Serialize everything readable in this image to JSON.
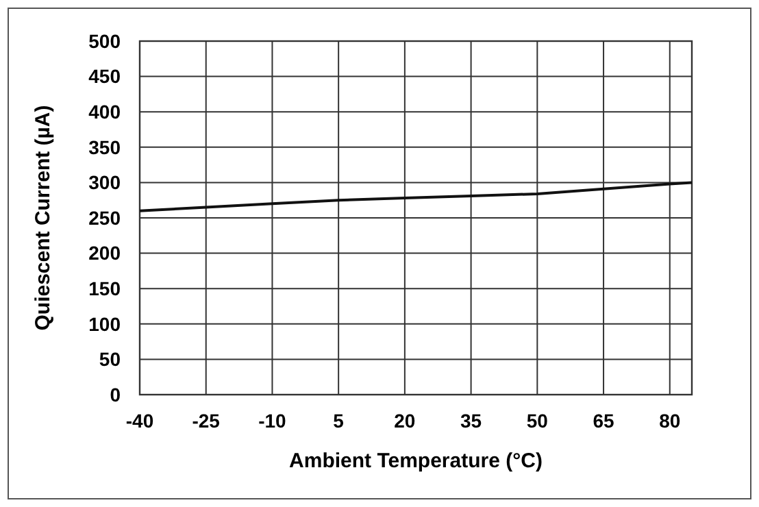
{
  "chart_data": {
    "type": "line",
    "xlabel": "Ambient Temperature (°C)",
    "ylabel": "Quiescent Current (µA)",
    "x": [
      -40,
      -25,
      -10,
      5,
      20,
      35,
      50,
      65,
      80,
      85
    ],
    "series": [
      {
        "color": "#111111",
        "values": [
          260,
          265,
          270,
          275,
          278,
          281,
          284,
          291,
          298,
          300
        ]
      }
    ],
    "xlim": [
      -40,
      85
    ],
    "xticks": [
      -40,
      -25,
      -10,
      5,
      20,
      35,
      50,
      65,
      80
    ],
    "ylim": [
      0,
      500
    ],
    "yticks": [
      0,
      50,
      100,
      150,
      200,
      250,
      300,
      350,
      400,
      450,
      500
    ],
    "grid": true,
    "marker": "none",
    "line_style": "solid"
  }
}
